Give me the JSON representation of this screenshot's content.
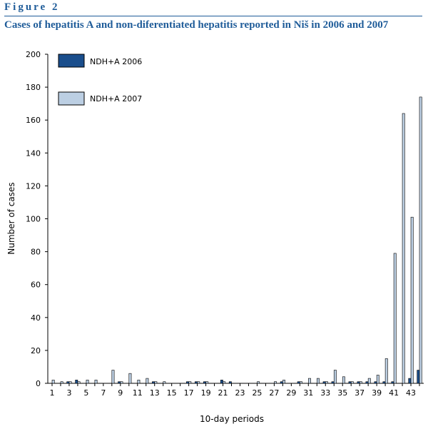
{
  "figure": {
    "label": "Figure 2",
    "title": "Cases of hepatitis A and non-diferentiated hepatitis reported in Niš in 2006 and 2007"
  },
  "chart_data": {
    "type": "bar",
    "xlabel": "10-day periods",
    "ylabel": "Number of cases",
    "ylim": [
      0,
      200
    ],
    "y_ticks": [
      0,
      20,
      40,
      60,
      80,
      100,
      120,
      140,
      160,
      180,
      200
    ],
    "x_tick_labels": [
      "1",
      "3",
      "5",
      "7",
      "9",
      "11",
      "13",
      "15",
      "17",
      "19",
      "21",
      "23",
      "25",
      "27",
      "29",
      "31",
      "33",
      "35",
      "37",
      "39",
      "41",
      "43"
    ],
    "categories": [
      1,
      2,
      3,
      4,
      5,
      6,
      7,
      8,
      9,
      10,
      11,
      12,
      13,
      14,
      15,
      16,
      17,
      18,
      19,
      20,
      21,
      22,
      23,
      24,
      25,
      26,
      27,
      28,
      29,
      30,
      31,
      32,
      33,
      34,
      35,
      36,
      37,
      38,
      39,
      40,
      41,
      42,
      43,
      44
    ],
    "grid": false,
    "legend_position": "top-left",
    "series": [
      {
        "name": "NDH+A 2006",
        "color": "#1a4e8c",
        "values": [
          0,
          0,
          1,
          2,
          0,
          0,
          0,
          0,
          1,
          0,
          0,
          0,
          1,
          0,
          0,
          0,
          1,
          1,
          1,
          0,
          2,
          1,
          0,
          0,
          0,
          0,
          0,
          1,
          0,
          1,
          0,
          0,
          1,
          1,
          0,
          1,
          1,
          1,
          1,
          1,
          1,
          0,
          3,
          8
        ]
      },
      {
        "name": "NDH+A 2007",
        "color": "#bccfe3",
        "values": [
          2,
          1,
          1,
          1,
          2,
          2,
          0,
          8,
          1,
          6,
          2,
          3,
          1,
          1,
          0,
          0,
          1,
          1,
          1,
          0,
          1,
          0,
          0,
          0,
          1,
          0,
          1,
          2,
          0,
          1,
          3,
          3,
          1,
          8,
          4,
          1,
          1,
          3,
          5,
          15,
          79,
          164,
          101,
          174
        ]
      }
    ]
  }
}
